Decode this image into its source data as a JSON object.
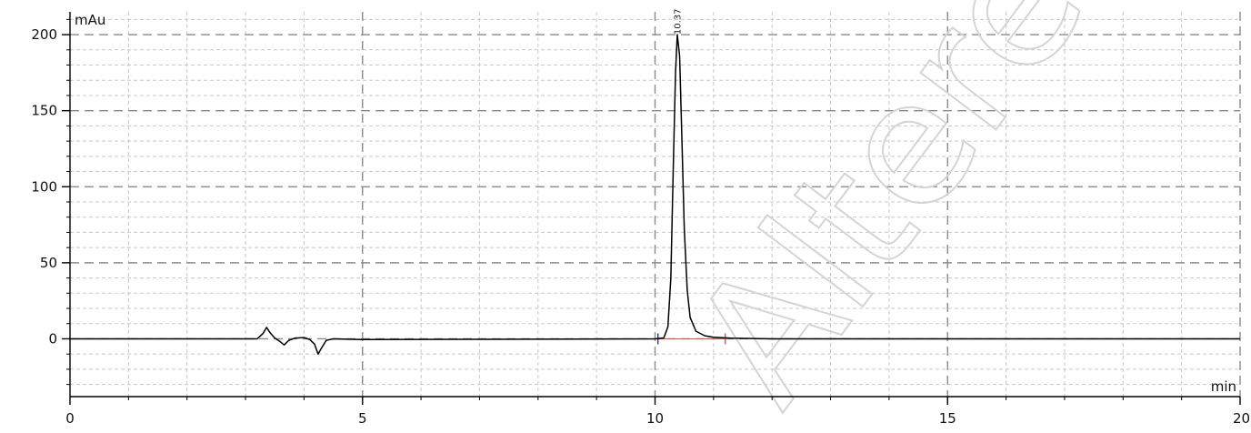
{
  "chart_data": {
    "type": "line",
    "title": "",
    "xlabel": "min",
    "ylabel": "mAu",
    "xlim": [
      0,
      20
    ],
    "ylim": [
      -38,
      215
    ],
    "x_ticks": [
      0,
      5,
      10,
      15,
      20
    ],
    "x_tick_labels": [
      "0",
      "5",
      "10",
      "15",
      "20"
    ],
    "y_ticks": [
      0,
      50,
      100,
      150,
      200
    ],
    "y_tick_labels": [
      "0",
      "50",
      "100",
      "150",
      "200"
    ],
    "grid": true,
    "series": [
      {
        "color": "#000000",
        "points": [
          [
            0,
            0
          ],
          [
            3.2,
            0
          ],
          [
            3.3,
            3.5
          ],
          [
            3.36,
            7.5
          ],
          [
            3.42,
            4
          ],
          [
            3.5,
            0.5
          ],
          [
            3.58,
            -1.5
          ],
          [
            3.66,
            -4
          ],
          [
            3.74,
            -1
          ],
          [
            3.85,
            0.5
          ],
          [
            4.0,
            0.8
          ],
          [
            4.1,
            -0.5
          ],
          [
            4.18,
            -3.5
          ],
          [
            4.24,
            -10
          ],
          [
            4.3,
            -6
          ],
          [
            4.38,
            -1
          ],
          [
            4.5,
            0
          ],
          [
            5.0,
            -0.5
          ],
          [
            7.0,
            -0.3
          ],
          [
            10.0,
            0
          ],
          [
            10.15,
            0.6
          ],
          [
            10.22,
            8
          ],
          [
            10.27,
            40
          ],
          [
            10.31,
            110
          ],
          [
            10.35,
            175
          ],
          [
            10.38,
            200
          ],
          [
            10.42,
            186
          ],
          [
            10.46,
            130
          ],
          [
            10.5,
            72
          ],
          [
            10.55,
            32
          ],
          [
            10.6,
            14
          ],
          [
            10.7,
            5
          ],
          [
            10.85,
            2
          ],
          [
            11.0,
            1
          ],
          [
            11.3,
            0.4
          ],
          [
            12.0,
            0
          ],
          [
            20.0,
            0
          ]
        ]
      }
    ],
    "baseline": {
      "x_start": 10.05,
      "x_end": 11.2,
      "color": "#e05050"
    },
    "peak_markers": [
      {
        "x": 10.05,
        "color": "#2a2acf"
      },
      {
        "x": 11.2,
        "color": "#e05050"
      }
    ],
    "peaks": [
      {
        "x": 10.37,
        "y": 200,
        "label": "10.37"
      }
    ],
    "watermark": "Altered"
  }
}
